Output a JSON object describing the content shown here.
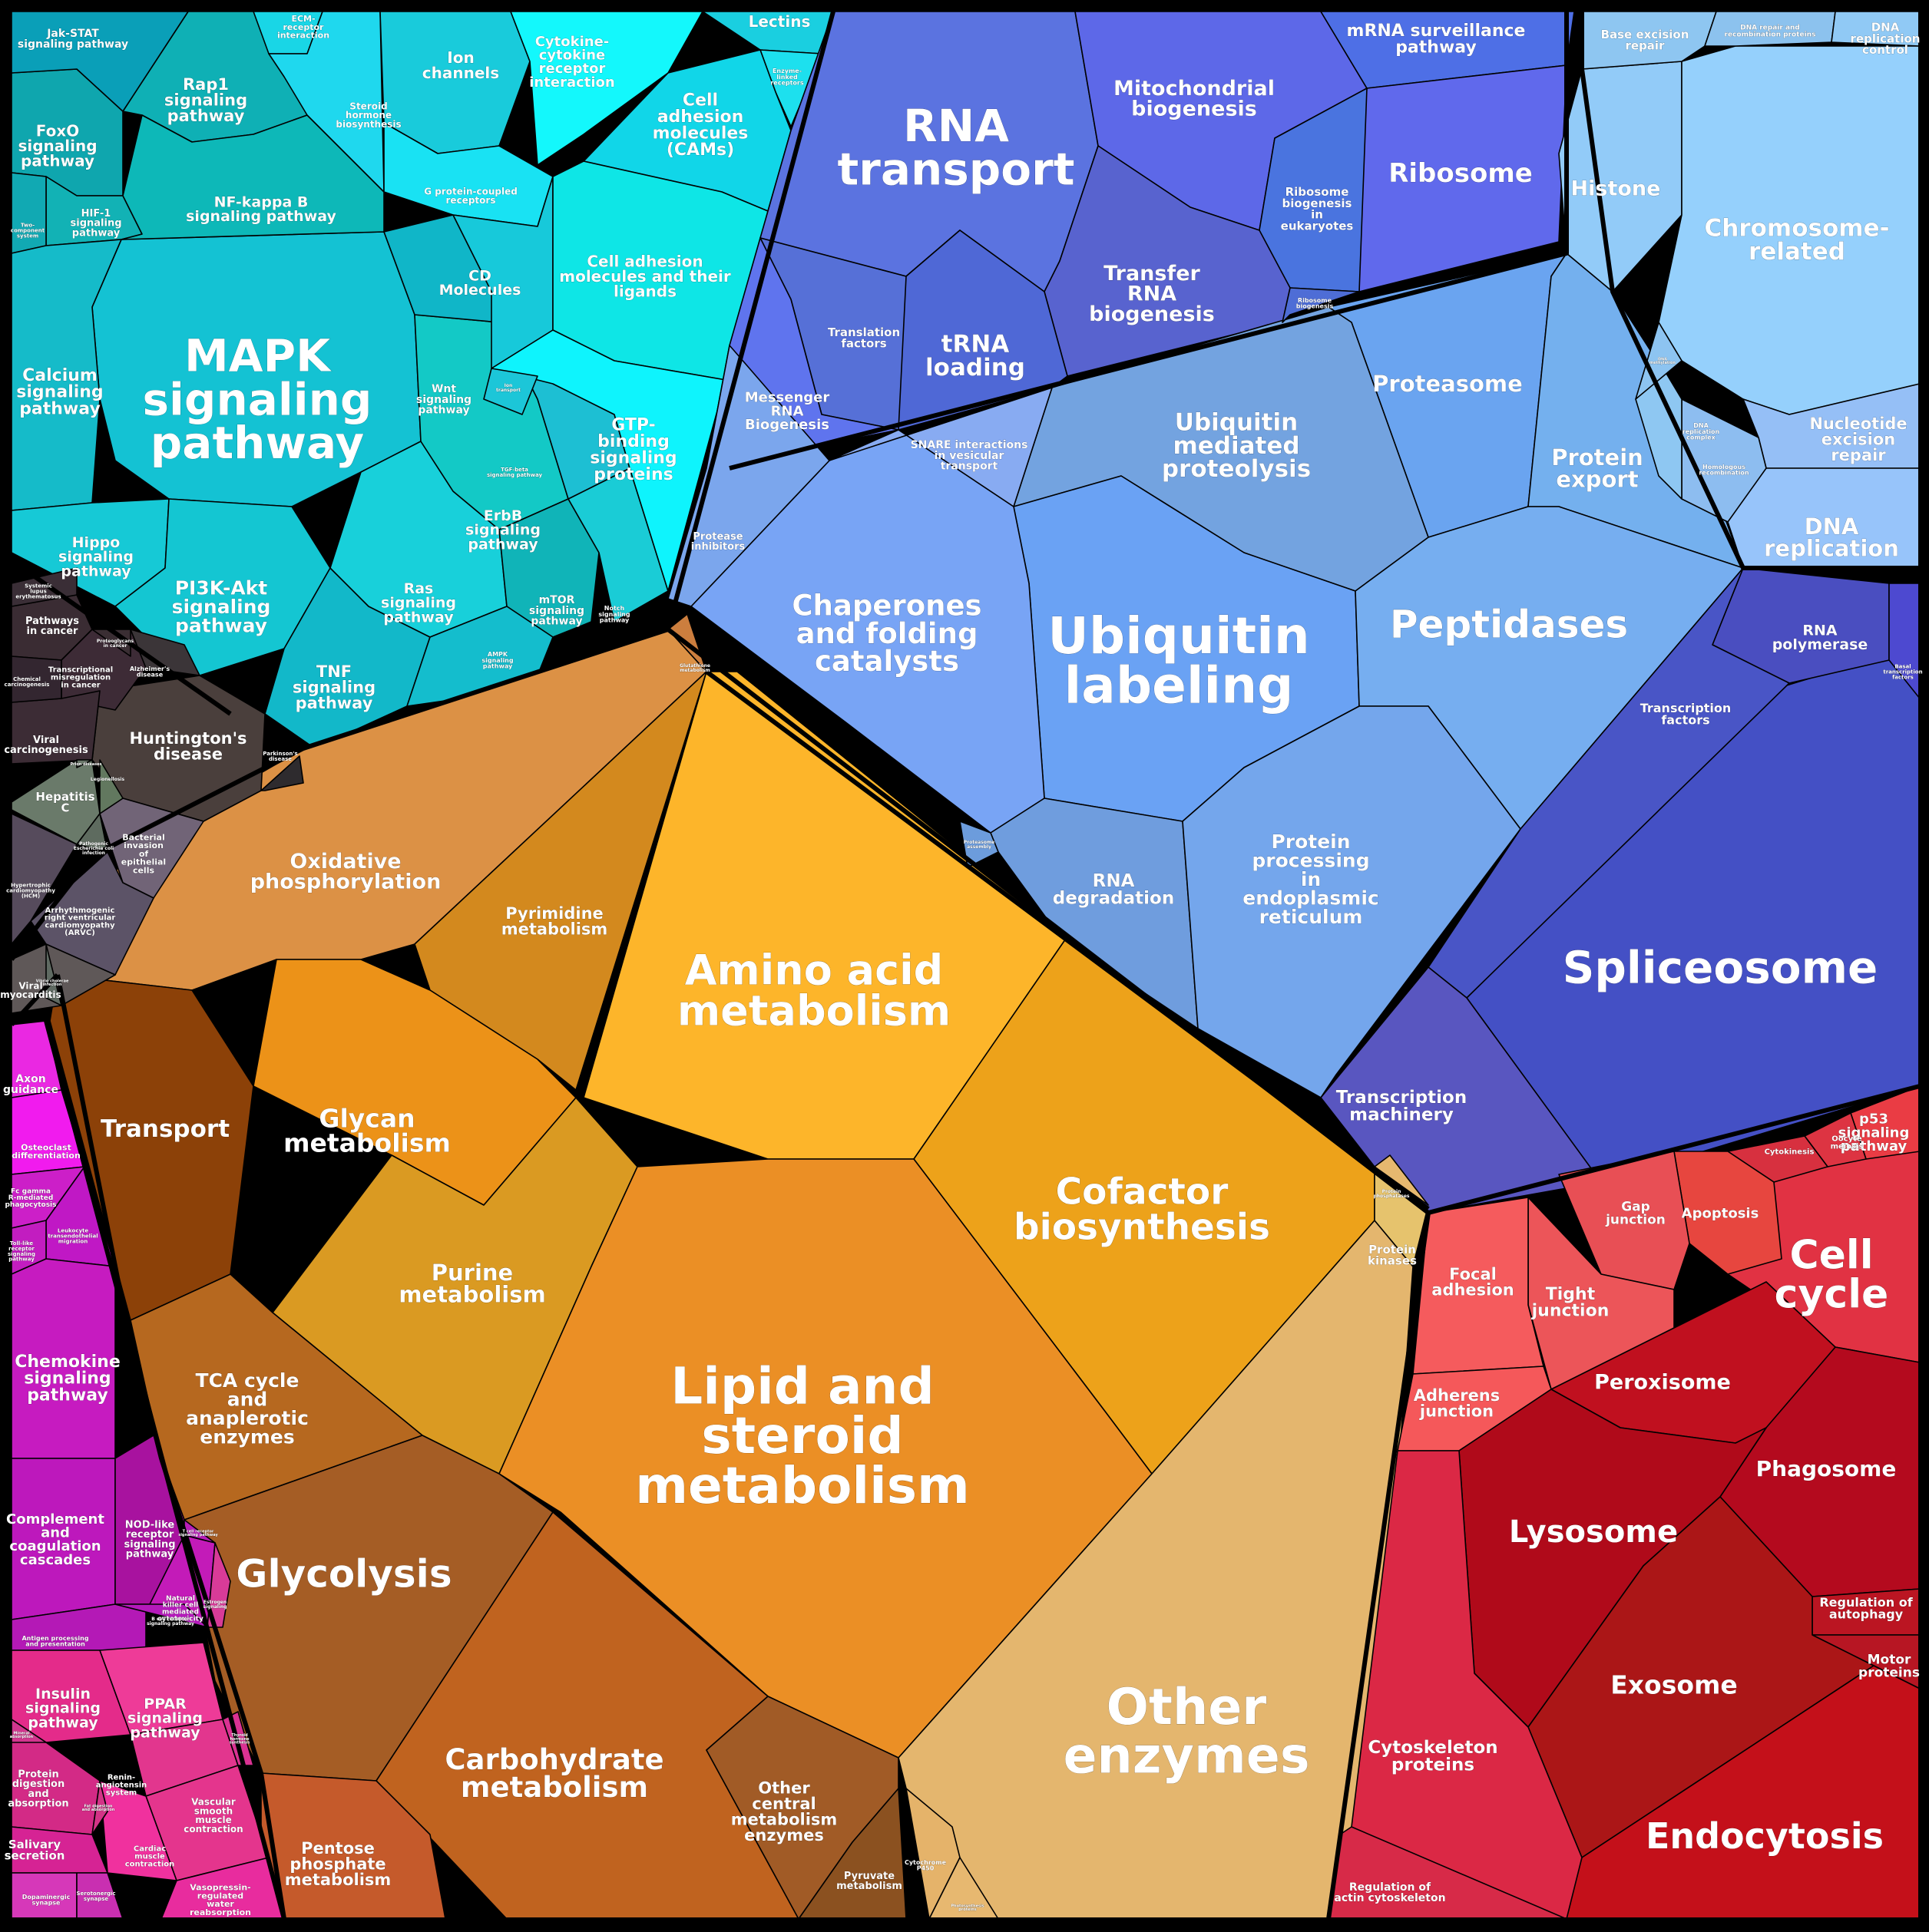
{
  "groups": {
    "signaling": {
      "color": "#12C7D6"
    },
    "metabolism": {
      "color": "#E89A2A"
    },
    "genetic": {
      "color": "#5B63E6"
    },
    "folding": {
      "color": "#6AA2F2"
    },
    "cellular": {
      "color": "#D51C38"
    },
    "organismal": {
      "color": "#D41CC4"
    },
    "disease": {
      "color": "#4A4146"
    },
    "replication": {
      "color": "#93CCF8"
    }
  },
  "cells": [
    {
      "label": "MAPK signaling pathway",
      "color": "#14C2D3"
    },
    {
      "label": "Rap1 signaling pathway",
      "color": "#0FB0B5"
    },
    {
      "label": "FoxO signaling pathway",
      "color": "#0FA6AE"
    },
    {
      "label": "Jak-STAT signaling pathway",
      "color": "#0A9FB8"
    },
    {
      "label": "HIF-1 signaling pathway",
      "color": "#12B2B5"
    },
    {
      "label": "Two-component system",
      "color": "#11A9B3"
    },
    {
      "label": "NF-kappa B signaling pathway",
      "color": "#0DB8B8"
    },
    {
      "label": "Calcium signaling pathway",
      "color": "#15BBC9"
    },
    {
      "label": "Hippo signaling pathway",
      "color": "#16C9D6"
    },
    {
      "label": "PI3K-Akt signaling pathway",
      "color": "#14C6D2"
    },
    {
      "label": "TNF signaling pathway",
      "color": "#12B8C9"
    },
    {
      "label": "Ras signaling pathway",
      "color": "#18D0DA"
    },
    {
      "label": "ErbB signaling pathway",
      "color": "#13C9C6"
    },
    {
      "label": "mTOR signaling pathway",
      "color": "#10B4B8"
    },
    {
      "label": "Notch signaling pathway",
      "color": "#1ACCD6"
    },
    {
      "label": "AMPK signaling pathway",
      "color": "#14BDCD"
    },
    {
      "label": "Wnt signaling pathway",
      "color": "#10B6C8"
    },
    {
      "label": "TGF-beta signaling pathway",
      "color": "#1DBFD3"
    },
    {
      "label": "ECM-receptor interaction",
      "color": "#19D6E6"
    },
    {
      "label": "Steroid hormone biosynthesis",
      "color": "#1FD8EE"
    },
    {
      "label": "Ion channels",
      "color": "#19CBDB"
    },
    {
      "label": "Cytokine-cytokine receptor interaction",
      "color": "#13F8FC"
    },
    {
      "label": "Lectins",
      "color": "#1ACFE0"
    },
    {
      "label": "Enzyme-linked receptors",
      "color": "#1DE0EE"
    },
    {
      "label": "Cell adhesion molecules (CAMs)",
      "color": "#11D6E8"
    },
    {
      "label": "G protein-coupled receptors",
      "color": "#19E2F3"
    },
    {
      "label": "CD Molecules",
      "color": "#17C9DA"
    },
    {
      "label": "Cell adhesion molecules and their ligands",
      "color": "#0EE6E6"
    },
    {
      "label": "GTP-binding signaling proteins",
      "color": "#0EF4FD"
    },
    {
      "label": "Oxidative phosphorylation",
      "color": "#DC9145"
    },
    {
      "label": "Pyrimidine metabolism",
      "color": "#D3891E"
    },
    {
      "label": "Amino acid metabolism",
      "color": "#FDB52A"
    },
    {
      "label": "Glycan metabolism",
      "color": "#EC9218"
    },
    {
      "label": "Purine metabolism",
      "color": "#DA9A22"
    },
    {
      "label": "Cofactor biosynthesis",
      "color": "#EDA21A"
    },
    {
      "label": "Transport",
      "color": "#8C4108"
    },
    {
      "label": "Lipid and steroid metabolism",
      "color": "#EB8F25"
    },
    {
      "label": "TCA cycle and anaplerotic enzymes",
      "color": "#B6681F"
    },
    {
      "label": "Glycolysis",
      "color": "#A55D25"
    },
    {
      "label": "Carbohydrate metabolism",
      "color": "#C0631F"
    },
    {
      "label": "Other central metabolism enzymes",
      "color": "#A15B26"
    },
    {
      "label": "Pentose phosphate metabolism",
      "color": "#C55A2B"
    },
    {
      "label": "Pyruvate metabolism",
      "color": "#8B5120"
    },
    {
      "label": "Other enzymes",
      "color": "#E4B66E"
    },
    {
      "label": "Protein kinases",
      "color": "#E6C36D"
    },
    {
      "label": "RNA transport",
      "color": "#5B73E0"
    },
    {
      "label": "Mitochondrial biogenesis",
      "color": "#5D68E8"
    },
    {
      "label": "mRNA surveillance pathway",
      "color": "#4E6FE6"
    },
    {
      "label": "Ribosome",
      "color": "#6069EC"
    },
    {
      "label": "Ribosome biogenesis in eukaryotes",
      "color": "#4A74DF"
    },
    {
      "label": "Transfer RNA biogenesis",
      "color": "#5863CF"
    },
    {
      "label": "Translation factors",
      "color": "#5670D7"
    },
    {
      "label": "tRNA loading",
      "color": "#4F68D6"
    },
    {
      "label": "Messenger RNA Biogenesis",
      "color": "#5F74EE"
    },
    {
      "label": "Proteasome",
      "color": "#6AA4F0"
    },
    {
      "label": "Ubiquitin mediated proteolysis",
      "color": "#73A3E0"
    },
    {
      "label": "Protein export",
      "color": "#74B0EE"
    },
    {
      "label": "Ubiquitin labeling",
      "color": "#6AA2F4"
    },
    {
      "label": "Chaperones and folding catalysts",
      "color": "#78A4F5"
    },
    {
      "label": "Peptidases",
      "color": "#76AEF0"
    },
    {
      "label": "Protease inhibitors",
      "color": "#7BA6ED"
    },
    {
      "label": "SNARE interactions in vesicular transport",
      "color": "#88ABF2"
    },
    {
      "label": "RNA degradation",
      "color": "#6F9DDE"
    },
    {
      "label": "Protein processing in endoplasmic reticulum",
      "color": "#74A6EC"
    },
    {
      "label": "Histone",
      "color": "#92CBF8"
    },
    {
      "label": "Chromosome-related",
      "color": "#95D0FC"
    },
    {
      "label": "Base excision repair",
      "color": "#8EC6F1"
    },
    {
      "label": "DNA repair and recombination proteins",
      "color": "#8CC2EE"
    },
    {
      "label": "DNA replication control",
      "color": "#90C9F5"
    },
    {
      "label": "Nucleotide excision repair",
      "color": "#95BFF6"
    },
    {
      "label": "DNA replication",
      "color": "#97C4FA"
    },
    {
      "label": "Homologous recombination",
      "color": "#8DBDF0"
    },
    {
      "label": "DNA replication complex",
      "color": "#8EC7F2"
    },
    {
      "label": "Spliceosome",
      "color": "#4450C5"
    },
    {
      "label": "RNA polymerase",
      "color": "#4A4EC0"
    },
    {
      "label": "Basal transcription factors",
      "color": "#4D49D0"
    },
    {
      "label": "Transcription factors",
      "color": "#4955C6"
    },
    {
      "label": "Transcription machinery",
      "color": "#5956C0"
    },
    {
      "label": "Cell cycle",
      "color": "#E13243"
    },
    {
      "label": "p53 signaling pathway",
      "color": "#EA3C44"
    },
    {
      "label": "Oocyte meiosis",
      "color": "#DD3442"
    },
    {
      "label": "Cytokinesis",
      "color": "#D7303F"
    },
    {
      "label": "Apoptosis",
      "color": "#E7463F"
    },
    {
      "label": "Gap junction",
      "color": "#E84F55"
    },
    {
      "label": "Tight junction",
      "color": "#EC5559"
    },
    {
      "label": "Focal adhesion",
      "color": "#F55B5D"
    },
    {
      "label": "Adherens junction",
      "color": "#F5585A"
    },
    {
      "label": "Peroxisome",
      "color": "#C0101F"
    },
    {
      "label": "Phagosome",
      "color": "#B40A1E"
    },
    {
      "label": "Lysosome",
      "color": "#B00A1A"
    },
    {
      "label": "Regulation of autophagy",
      "color": "#BB1522"
    },
    {
      "label": "Motor proteins",
      "color": "#B71623"
    },
    {
      "label": "Exosome",
      "color": "#AB1617"
    },
    {
      "label": "Endocytosis",
      "color": "#C4101A"
    },
    {
      "label": "Cytoskeleton proteins",
      "color": "#DB2845"
    },
    {
      "label": "Regulation of actin cytoskeleton",
      "color": "#D72A48"
    },
    {
      "label": "Axon guidance",
      "color": "#EA28E2"
    },
    {
      "label": "Osteoclast differentiation",
      "color": "#F11BEE"
    },
    {
      "label": "Fc gamma R-mediated phagocytosis",
      "color": "#CC1FC8"
    },
    {
      "label": "Leukocyte transendothelial migration",
      "color": "#C018C5"
    },
    {
      "label": "Toll-like receptor signaling pathway",
      "color": "#C21DC0"
    },
    {
      "label": "Chemokine signaling pathway",
      "color": "#C61BC0"
    },
    {
      "label": "Complement and coagulation cascades",
      "color": "#BD18BC"
    },
    {
      "label": "NOD-like receptor signaling pathway",
      "color": "#A8129F"
    },
    {
      "label": "Natural killer cell mediated cytotoxicity",
      "color": "#C31BB8"
    },
    {
      "label": "Antigen processing and presentation",
      "color": "#B419B6"
    },
    {
      "label": "Insulin signaling pathway",
      "color": "#E42B8A"
    },
    {
      "label": "PPAR signaling pathway",
      "color": "#EE3B98"
    },
    {
      "label": "Renin-angiotensin system",
      "color": "#E2368E"
    },
    {
      "label": "Protein digestion and absorption",
      "color": "#D32A86"
    },
    {
      "label": "Vascular smooth muscle contraction",
      "color": "#E4358D"
    },
    {
      "label": "Cardiac muscle contraction",
      "color": "#F0319E"
    },
    {
      "label": "Salivary secretion",
      "color": "#D62394"
    },
    {
      "label": "Vasopressin-regulated water reabsorption",
      "color": "#E82C9E"
    },
    {
      "label": "Dopaminergic synapse",
      "color": "#D638B9"
    },
    {
      "label": "Serotonergic synapse",
      "color": "#C92FB1"
    },
    {
      "label": "Huntington's disease",
      "color": "#4A3F3C"
    },
    {
      "label": "Pathways in cancer",
      "color": "#3A2C33"
    },
    {
      "label": "Transcriptional misregulation in cancer",
      "color": "#3D2B36"
    },
    {
      "label": "Viral carcinogenesis",
      "color": "#3C2C35"
    },
    {
      "label": "Hepatitis C",
      "color": "#6A7A6A"
    },
    {
      "label": "Bacterial invasion of epithelial cells",
      "color": "#716477"
    },
    {
      "label": "Arrhythmogenic right ventricular cardiomyopathy (ARVC)",
      "color": "#5C5367"
    },
    {
      "label": "Viral myocarditis",
      "color": "#5F5858"
    },
    {
      "label": "Hypertrophic cardiomyopathy (HCM)",
      "color": "#564B5C"
    },
    {
      "label": "Alzheimer's disease",
      "color": "#3B3538"
    },
    {
      "label": "Parkinson's disease",
      "color": "#2E2B2E"
    },
    {
      "label": "Chemical carcinogenesis",
      "color": "#332630"
    },
    {
      "label": "Systemic lupus erythematosus",
      "color": "#3A2E36"
    },
    {
      "label": "Proteoglycans in cancer",
      "color": "#3A2E33"
    },
    {
      "label": "Legionellosis",
      "color": "#62785F"
    },
    {
      "label": "Pathogenic Escherichia coli infection",
      "color": "#5E6B5F"
    },
    {
      "label": "Glutathione metabolism",
      "color": "#CC7E3E"
    },
    {
      "label": "Cytochrome P450",
      "color": "#E5B36A"
    },
    {
      "label": "Photosynthesis proteins",
      "color": "#E7B870"
    },
    {
      "label": "Protein phosphatases",
      "color": "#E6B86F"
    },
    {
      "label": "Proteasome assembly",
      "color": "#6C9CDC"
    },
    {
      "label": "Ribosome biogenesis",
      "color": "#4E6DD6"
    },
    {
      "label": "Ion transport",
      "color": "#1CC6D8"
    },
    {
      "label": "Prion diseases",
      "color": "#6A776A"
    },
    {
      "label": "Vibrio cholerae infection",
      "color": "#5F6A62"
    },
    {
      "label": "DNA methylation",
      "color": "#8DC4F1"
    },
    {
      "label": "Estrogen signaling",
      "color": "#D83B98"
    },
    {
      "label": "Mineral absorption",
      "color": "#D2368E"
    },
    {
      "label": "Fat digestion and absorption",
      "color": "#D33487"
    },
    {
      "label": "Thyroid hormone synthesis",
      "color": "#DA3293"
    },
    {
      "label": "B cell receptor signaling pathway",
      "color": "#B51ABB"
    },
    {
      "label": "T cell receptor signaling pathway",
      "color": "#B81DB8"
    }
  ]
}
